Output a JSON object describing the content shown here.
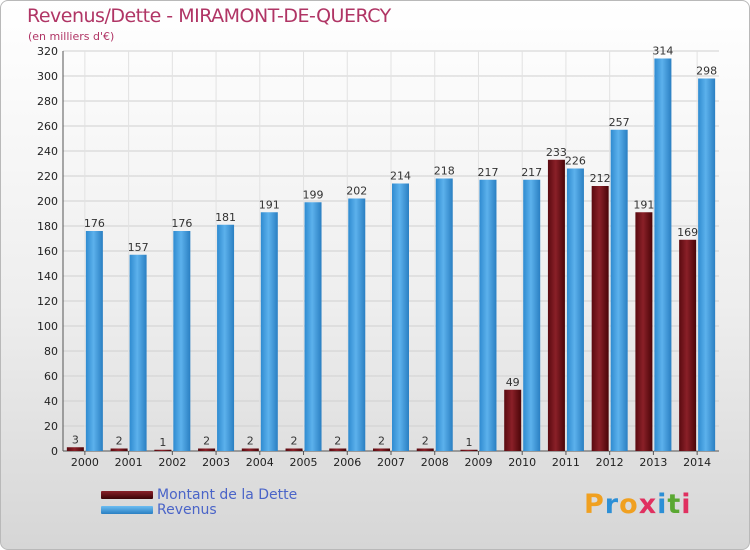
{
  "header": {
    "title": "Revenus/Dette - MIRAMONT-DE-QUERCY",
    "subtitle": "(en milliers d'€)"
  },
  "legend": {
    "debt_label": "Montant de la Dette",
    "revenue_label": "Revenus"
  },
  "logo": {
    "text": "Proxiti",
    "letters": [
      "P",
      "r",
      "o",
      "x",
      "i",
      "t",
      "i"
    ],
    "colors": [
      "#f0a020",
      "#2c8fd6",
      "#f0a020",
      "#e03060",
      "#2c8fd6",
      "#5aa832",
      "#e03060"
    ]
  },
  "colors": {
    "debt": "#7a1018",
    "revenue": "#3a9de0"
  },
  "chart_data": {
    "type": "bar",
    "categories": [
      "2000",
      "2001",
      "2002",
      "2003",
      "2004",
      "2005",
      "2006",
      "2007",
      "2008",
      "2009",
      "2010",
      "2011",
      "2012",
      "2013",
      "2014"
    ],
    "series": [
      {
        "name": "Montant de la Dette",
        "values": [
          3,
          2,
          1,
          2,
          2,
          2,
          2,
          2,
          2,
          1,
          49,
          233,
          212,
          191,
          169
        ]
      },
      {
        "name": "Revenus",
        "values": [
          176,
          157,
          176,
          181,
          191,
          199,
          202,
          214,
          218,
          217,
          217,
          226,
          257,
          314,
          298
        ]
      }
    ],
    "ylim": [
      0,
      320
    ],
    "yticks": [
      0,
      20,
      40,
      60,
      80,
      100,
      120,
      140,
      160,
      180,
      200,
      220,
      240,
      260,
      280,
      300,
      320
    ],
    "grid": true
  }
}
